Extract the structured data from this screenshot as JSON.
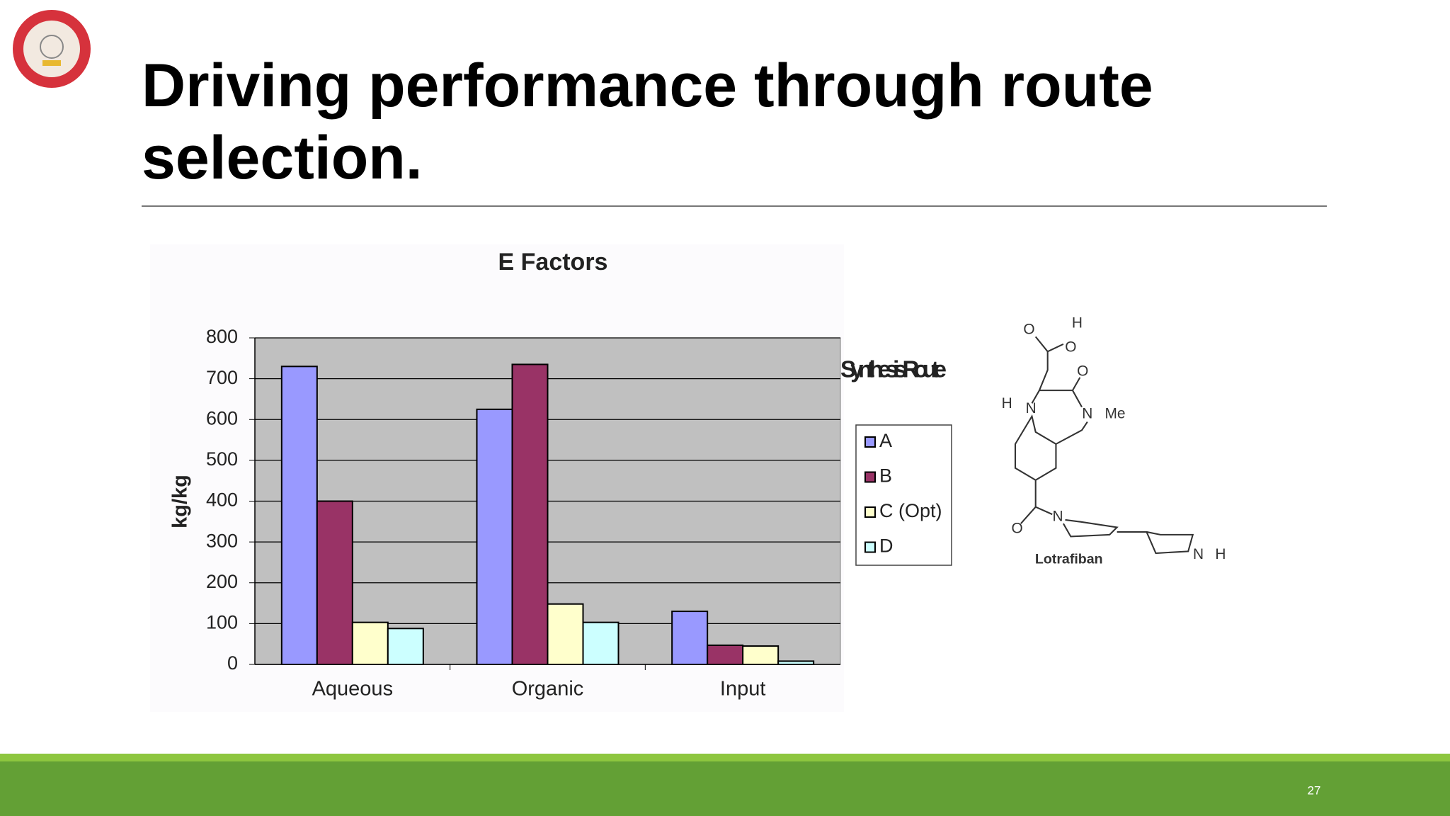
{
  "slide": {
    "title": "Driving performance through route selection.",
    "page_number": "27"
  },
  "chart_data": {
    "type": "bar",
    "title": "E Factors",
    "y_label": "kg/kg",
    "categories": [
      "Aqueous",
      "Organic",
      "Input"
    ],
    "series": [
      {
        "name": "A",
        "color": "#9999ff",
        "values": [
          730,
          625,
          130
        ]
      },
      {
        "name": "B",
        "color": "#993366",
        "values": [
          400,
          735,
          47
        ]
      },
      {
        "name": "C (Opt)",
        "color": "#ffffcc",
        "values": [
          103,
          148,
          45
        ]
      },
      {
        "name": "D",
        "color": "#ccffff",
        "values": [
          88,
          103,
          8
        ]
      }
    ],
    "legend_title": "Synthesis Route",
    "ylim": [
      0,
      800
    ],
    "yticks": [
      0,
      100,
      200,
      300,
      400,
      500,
      600,
      700,
      800
    ],
    "grid": true,
    "plot_background": "#c0c0c0",
    "legend_position": "right"
  },
  "molecule": {
    "labels": [
      "O",
      "H",
      "O",
      "O",
      "H",
      "N",
      "N",
      "Me",
      "O",
      "N",
      "N",
      "H",
      "Lotrafiban"
    ]
  }
}
